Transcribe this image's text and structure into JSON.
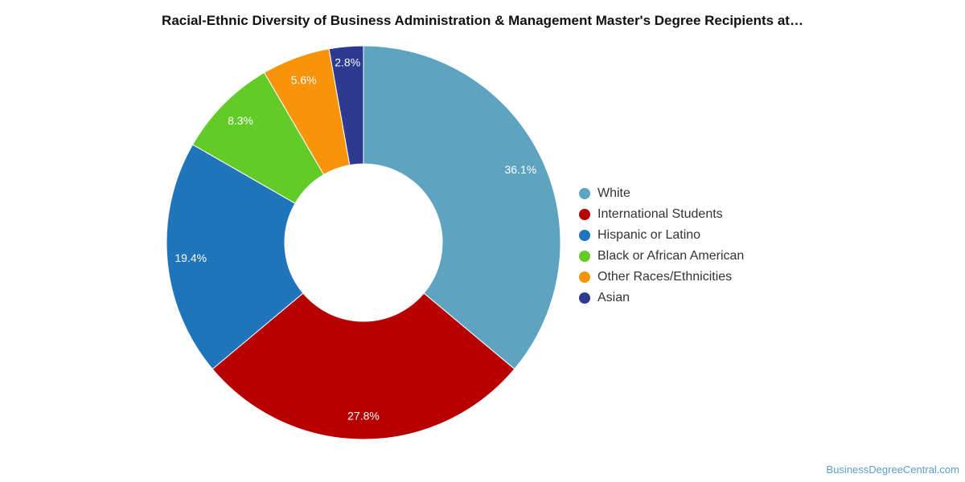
{
  "title": "Racial-Ethnic Diversity of Business Administration & Management Master's Degree Recipients at…",
  "source": "BusinessDegreeCentral.com",
  "chart_data": {
    "type": "pie",
    "donut": true,
    "title": "Racial-Ethnic Diversity of Business Administration & Management Master's Degree Recipients at…",
    "legend_position": "right",
    "slices": [
      {
        "name": "White",
        "value": 36.1,
        "label": "36.1%",
        "color": "#5ea3c0"
      },
      {
        "name": "International Students",
        "value": 27.8,
        "label": "27.8%",
        "color": "#b70000"
      },
      {
        "name": "Hispanic or Latino",
        "value": 19.4,
        "label": "19.4%",
        "color": "#1f74ba"
      },
      {
        "name": "Black or African American",
        "value": 8.3,
        "label": "8.3%",
        "color": "#63cb28"
      },
      {
        "name": "Other Races/Ethnicities",
        "value": 5.6,
        "label": "5.6%",
        "color": "#f7940a"
      },
      {
        "name": "Asian",
        "value": 2.8,
        "label": "2.8%",
        "color": "#2c3a8f"
      }
    ]
  }
}
